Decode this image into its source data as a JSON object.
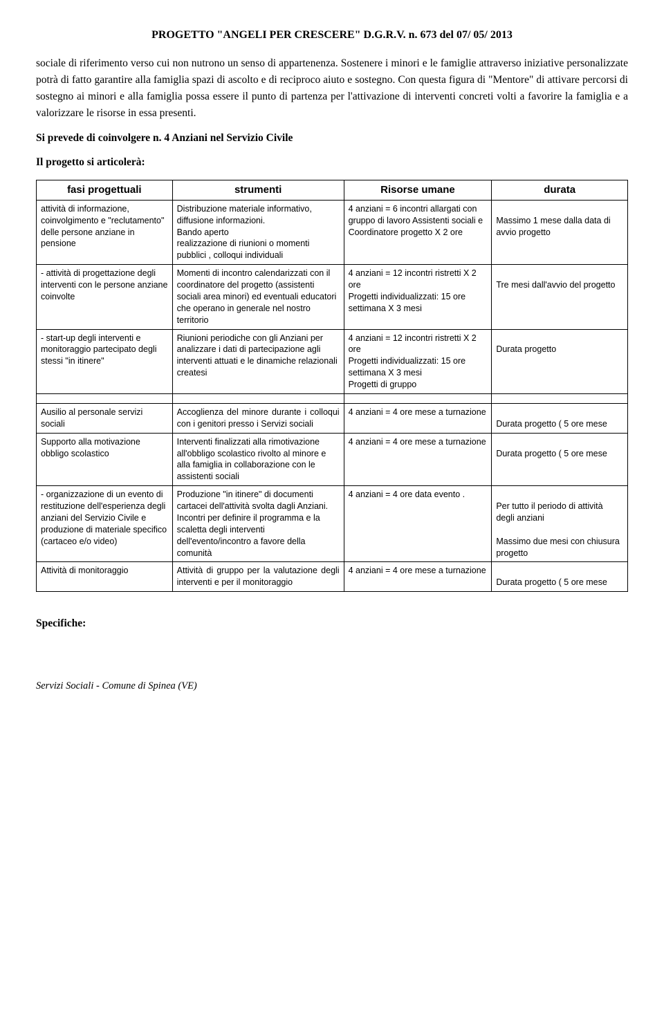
{
  "header": {
    "title": "PROGETTO   \"ANGELI PER  CRESCERE\"  D.G.R.V.  n.  673 del  07/ 05/ 2013"
  },
  "paragraphs": {
    "p1": "sociale di riferimento verso cui non nutrono un senso di appartenenza. Sostenere i minori e le famiglie  attraverso iniziative personalizzate potrà di fatto  garantire alla famiglia spazi di ascolto e di reciproco aiuto e sostegno. Con questa figura di  \"Mentore\"  di attivare percorsi di sostegno ai minori e alla  famiglia  possa essere il punto di partenza per l'attivazione di interventi concreti volti a favorire la famiglia e a valorizzare le risorse in essa presenti.",
    "h1": "Si prevede di coinvolgere  n. 4  Anziani  nel Servizio Civile",
    "h2": "Il progetto si articolerà:"
  },
  "table": {
    "headers": {
      "c1": "fasi progettuali",
      "c2": "strumenti",
      "c3": "Risorse umane",
      "c4": "durata"
    },
    "rows1": [
      {
        "c1": "attività di informazione, coinvolgimento e \"reclutamento\" delle persone anziane in pensione",
        "c2": "Distribuzione materiale informativo, diffusione informazioni.\nBando aperto\nrealizzazione di riunioni o momenti pubblici , colloqui individuali",
        "c3": "4 anziani = 6 incontri allargati con gruppo di lavoro Assistenti sociali e Coordinatore progetto X 2 ore",
        "c4": "\nMassimo 1 mese dalla data di avvio progetto"
      },
      {
        "c1": "- attività di progettazione degli interventi con le persone anziane coinvolte",
        "c2": "Momenti di incontro calendarizzati con il coordinatore del progetto (assistenti sociali area minori) ed eventuali educatori  che operano in generale nel nostro territorio",
        "c3": "4 anziani = 12 incontri ristretti X 2 ore\nProgetti individualizzati: 15 ore settimana X  3 mesi",
        "c4": "\nTre mesi   dall'avvio del progetto"
      },
      {
        "c1": "- start-up degli interventi e monitoraggio partecipato degli stessi \"in itinere\"",
        "c2": "Riunioni periodiche con gli Anziani  per analizzare i dati di partecipazione agli interventi attuati e le dinamiche relazionali createsi",
        "c3": "4 anziani = 12 incontri ristretti X 2 ore\nProgetti individualizzati: 15 ore settimana X  3 mesi\nProgetti di gruppo",
        "c4": "\nDurata progetto"
      }
    ],
    "rows2": [
      {
        "c1": "Ausilio al personale servizi sociali",
        "c2": "Accoglienza del minore durante i colloqui con i genitori presso i Servizi sociali",
        "c3": "4 anziani =  4 ore mese  a turnazione",
        "c4": "\nDurata progetto  ( 5 ore mese",
        "just": true
      },
      {
        "c1": "Supporto alla motivazione obbligo scolastico",
        "c2": "Interventi finalizzati alla rimotivazione all'obbligo scolastico rivolto al minore e alla famiglia in collaborazione con le assistenti sociali",
        "c3": "4 anziani =  4 ore mese  a turnazione",
        "c4": "\nDurata progetto  ( 5 ore mese"
      },
      {
        "c1": "- organizzazione di un evento di restituzione dell'esperienza degli anziani del Servizio Civile e produzione di materiale specifico (cartaceo e/o video)",
        "c2": "Produzione \"in itinere\" di documenti cartacei dell'attività svolta dagli Anziani.\nIncontri per definire il programma e la scaletta degli interventi  dell'evento/incontro a favore della comunità",
        "c3": "4 anziani = 4 ore data evento .",
        "c4": "\nPer tutto il periodo di attività degli anziani\n\nMassimo due mesi con chiusura progetto"
      },
      {
        "c1": "Attività di monitoraggio",
        "c2": "Attività di gruppo per la valutazione degli interventi e per il monitoraggio",
        "c3": "4 anziani =  4 ore mese  a turnazione",
        "c4": "\nDurata progetto  ( 5 ore mese",
        "just": true
      }
    ]
  },
  "specifiche": "Specifiche:",
  "footer": "Servizi Sociali -  Comune di Spinea (VE)"
}
